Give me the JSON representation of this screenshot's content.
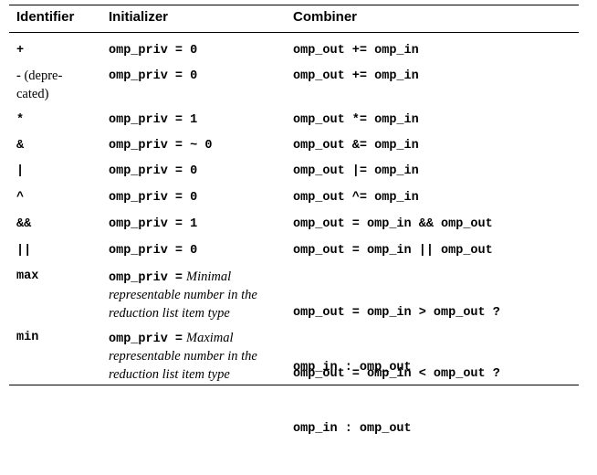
{
  "headers": {
    "identifier": "Identifier",
    "initializer": "Initializer",
    "combiner": "Combiner"
  },
  "rows": [
    {
      "identifier": "+",
      "initializer": "omp_priv = 0",
      "combiner": "omp_out += omp_in"
    },
    {
      "identifier": "-",
      "identifier_note_1": "(depre-",
      "identifier_note_2": "cated)",
      "initializer": "omp_priv = 0",
      "combiner": "omp_out += omp_in"
    },
    {
      "identifier": "*",
      "initializer": "omp_priv = 1",
      "combiner": "omp_out *= omp_in"
    },
    {
      "identifier": "&",
      "initializer": "omp_priv = ~ 0",
      "combiner": "omp_out &= omp_in"
    },
    {
      "identifier": "|",
      "initializer": "omp_priv = 0",
      "combiner": "omp_out |= omp_in"
    },
    {
      "identifier": "^",
      "initializer": "omp_priv = 0",
      "combiner": "omp_out ^= omp_in"
    },
    {
      "identifier": "&&",
      "initializer": "omp_priv = 1",
      "combiner": "omp_out = omp_in && omp_out"
    },
    {
      "identifier": "||",
      "initializer": "omp_priv = 0",
      "combiner": "omp_out = omp_in || omp_out"
    },
    {
      "identifier": "max",
      "initializer_code": "omp_priv =",
      "initializer_text_1": "Minimal",
      "initializer_text_2": "representable number in the",
      "initializer_text_3": "reduction list item type",
      "combiner_1": "omp_out = omp_in > omp_out ?",
      "combiner_2": "omp_in : omp_out"
    },
    {
      "identifier": "min",
      "initializer_code": "omp_priv =",
      "initializer_text_1": "Maximal",
      "initializer_text_2": "representable number in the",
      "initializer_text_3": "reduction list item type",
      "combiner_1": "omp_out = omp_in < omp_out ?",
      "combiner_2": "omp_in : omp_out"
    }
  ]
}
